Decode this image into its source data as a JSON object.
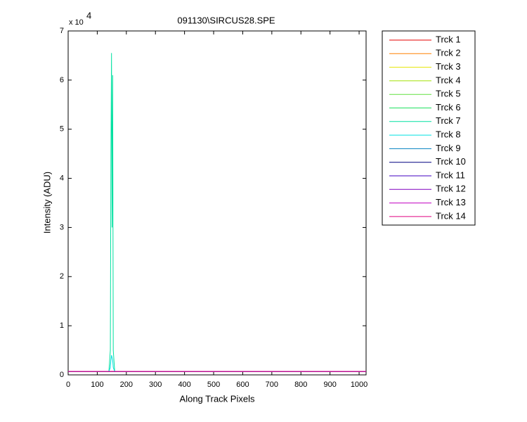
{
  "chart_data": {
    "type": "line",
    "title": "091130\\SIRCUS28.SPE",
    "xlabel": "Along Track Pixels",
    "ylabel": "Intensity (ADU)",
    "y_multiplier": "x 10",
    "y_exponent": "4",
    "x": [
      0,
      140,
      145,
      147,
      149,
      151,
      153,
      155,
      160,
      1024
    ],
    "xlim": [
      0,
      1024
    ],
    "xticks": [
      0,
      100,
      200,
      300,
      400,
      500,
      600,
      700,
      800,
      900,
      1000
    ],
    "ylim": [
      0,
      70000
    ],
    "yticks": [
      {
        "value": 0,
        "label": "0"
      },
      {
        "value": 10000,
        "label": "1"
      },
      {
        "value": 20000,
        "label": "2"
      },
      {
        "value": 30000,
        "label": "3"
      },
      {
        "value": 40000,
        "label": "4"
      },
      {
        "value": 50000,
        "label": "5"
      },
      {
        "value": 60000,
        "label": "6"
      },
      {
        "value": 70000,
        "label": "7"
      }
    ],
    "legend": "outside-right",
    "series": [
      {
        "name": "Trck 1",
        "color": "#e60000",
        "values": [
          700,
          700,
          700,
          700,
          700,
          700,
          700,
          700,
          700,
          700
        ]
      },
      {
        "name": "Trck 2",
        "color": "#ff8000",
        "values": [
          700,
          700,
          700,
          700,
          700,
          700,
          700,
          700,
          700,
          700
        ]
      },
      {
        "name": "Trck 3",
        "color": "#e6e600",
        "values": [
          700,
          700,
          700,
          700,
          700,
          700,
          700,
          700,
          700,
          700
        ]
      },
      {
        "name": "Trck 4",
        "color": "#a0e000",
        "values": [
          700,
          700,
          700,
          700,
          700,
          700,
          700,
          700,
          700,
          700
        ]
      },
      {
        "name": "Trck 5",
        "color": "#60e040",
        "values": [
          700,
          700,
          700,
          700,
          700,
          700,
          700,
          700,
          700,
          700
        ]
      },
      {
        "name": "Trck 6",
        "color": "#20e060",
        "values": [
          700,
          700,
          700,
          700,
          700,
          700,
          700,
          700,
          700,
          700
        ]
      },
      {
        "name": "Trck 7",
        "color": "#00e0a0",
        "values": [
          700,
          700,
          5000,
          45000,
          65500,
          30000,
          61000,
          5000,
          700,
          700
        ]
      },
      {
        "name": "Trck 8",
        "color": "#00e0e0",
        "values": [
          700,
          700,
          1500,
          3000,
          4000,
          3500,
          3000,
          1500,
          700,
          700
        ]
      },
      {
        "name": "Trck 9",
        "color": "#0080c0",
        "values": [
          700,
          700,
          700,
          700,
          700,
          700,
          700,
          700,
          700,
          700
        ]
      },
      {
        "name": "Trck 10",
        "color": "#000080",
        "values": [
          700,
          700,
          700,
          700,
          700,
          700,
          700,
          700,
          700,
          700
        ]
      },
      {
        "name": "Trck 11",
        "color": "#4000c0",
        "values": [
          700,
          700,
          700,
          700,
          700,
          700,
          700,
          700,
          700,
          700
        ]
      },
      {
        "name": "Trck 12",
        "color": "#8000c0",
        "values": [
          700,
          700,
          700,
          700,
          700,
          700,
          700,
          700,
          700,
          700
        ]
      },
      {
        "name": "Trck 13",
        "color": "#c000c0",
        "values": [
          700,
          700,
          700,
          700,
          700,
          700,
          700,
          700,
          700,
          700
        ]
      },
      {
        "name": "Trck 14",
        "color": "#e00080",
        "values": [
          700,
          700,
          700,
          700,
          700,
          700,
          700,
          700,
          700,
          700
        ]
      }
    ]
  }
}
